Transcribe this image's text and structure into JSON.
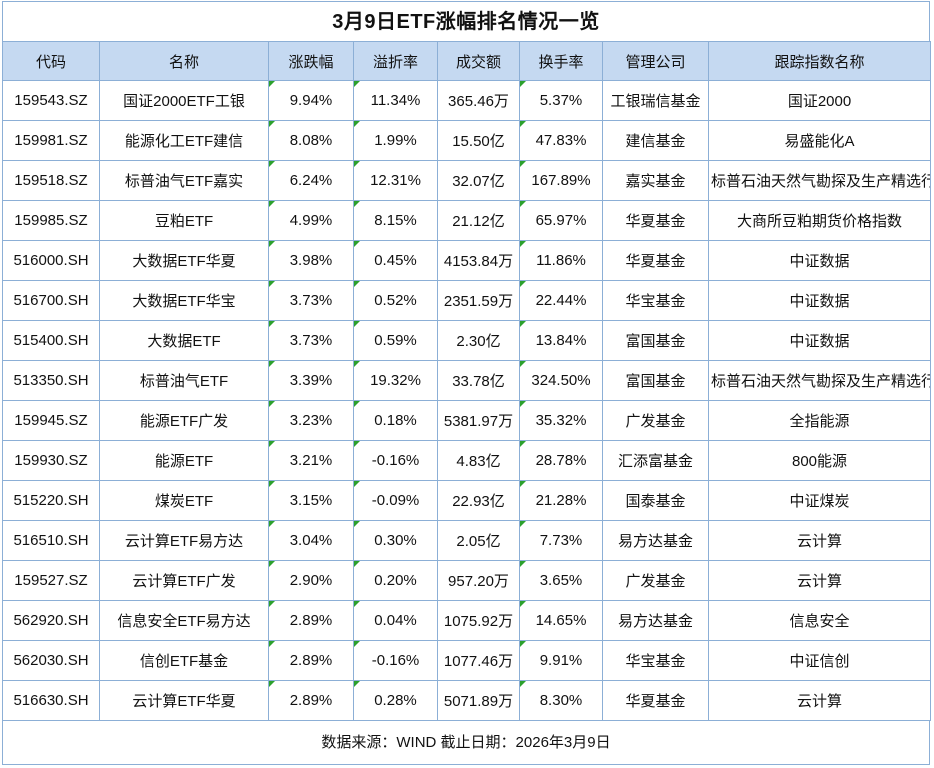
{
  "title": "3月9日ETF涨幅排名情况一览",
  "footer": {
    "source_note": "数据来源：WIND 截止日期：2026年3月9日"
  },
  "colors": {
    "header_bg": "#C5D9F1",
    "grid_border": "#8CAFD6",
    "marker_green": "#2CA02C",
    "text": "#111111",
    "background": "#FFFFFF"
  },
  "chart_data": {
    "type": "table",
    "title": "3月9日ETF涨幅排名情况一览",
    "source_note": "数据来源：WIND 截止日期：2026年3月9日",
    "columns": [
      "代码",
      "名称",
      "涨跌幅",
      "溢折率",
      "成交额",
      "换手率",
      "管理公司",
      "跟踪指数名称"
    ],
    "marked_columns": [
      2,
      3,
      5
    ],
    "rows": [
      [
        "159543.SZ",
        "国证2000ETF工银",
        "9.94%",
        "11.34%",
        "365.46万",
        "5.37%",
        "工银瑞信基金",
        "国证2000"
      ],
      [
        "159981.SZ",
        "能源化工ETF建信",
        "8.08%",
        "1.99%",
        "15.50亿",
        "47.83%",
        "建信基金",
        "易盛能化A"
      ],
      [
        "159518.SZ",
        "标普油气ETF嘉实",
        "6.24%",
        "12.31%",
        "32.07亿",
        "167.89%",
        "嘉实基金",
        "标普石油天然气勘探及生产精选行业"
      ],
      [
        "159985.SZ",
        "豆粕ETF",
        "4.99%",
        "8.15%",
        "21.12亿",
        "65.97%",
        "华夏基金",
        "大商所豆粕期货价格指数"
      ],
      [
        "516000.SH",
        "大数据ETF华夏",
        "3.98%",
        "0.45%",
        "4153.84万",
        "11.86%",
        "华夏基金",
        "中证数据"
      ],
      [
        "516700.SH",
        "大数据ETF华宝",
        "3.73%",
        "0.52%",
        "2351.59万",
        "22.44%",
        "华宝基金",
        "中证数据"
      ],
      [
        "515400.SH",
        "大数据ETF",
        "3.73%",
        "0.59%",
        "2.30亿",
        "13.84%",
        "富国基金",
        "中证数据"
      ],
      [
        "513350.SH",
        "标普油气ETF",
        "3.39%",
        "19.32%",
        "33.78亿",
        "324.50%",
        "富国基金",
        "标普石油天然气勘探及生产精选行业"
      ],
      [
        "159945.SZ",
        "能源ETF广发",
        "3.23%",
        "0.18%",
        "5381.97万",
        "35.32%",
        "广发基金",
        "全指能源"
      ],
      [
        "159930.SZ",
        "能源ETF",
        "3.21%",
        "-0.16%",
        "4.83亿",
        "28.78%",
        "汇添富基金",
        "800能源"
      ],
      [
        "515220.SH",
        "煤炭ETF",
        "3.15%",
        "-0.09%",
        "22.93亿",
        "21.28%",
        "国泰基金",
        "中证煤炭"
      ],
      [
        "516510.SH",
        "云计算ETF易方达",
        "3.04%",
        "0.30%",
        "2.05亿",
        "7.73%",
        "易方达基金",
        "云计算"
      ],
      [
        "159527.SZ",
        "云计算ETF广发",
        "2.90%",
        "0.20%",
        "957.20万",
        "3.65%",
        "广发基金",
        "云计算"
      ],
      [
        "562920.SH",
        "信息安全ETF易方达",
        "2.89%",
        "0.04%",
        "1075.92万",
        "14.65%",
        "易方达基金",
        "信息安全"
      ],
      [
        "562030.SH",
        "信创ETF基金",
        "2.89%",
        "-0.16%",
        "1077.46万",
        "9.91%",
        "华宝基金",
        "中证信创"
      ],
      [
        "516630.SH",
        "云计算ETF华夏",
        "2.89%",
        "0.28%",
        "5071.89万",
        "8.30%",
        "华夏基金",
        "云计算"
      ]
    ]
  }
}
